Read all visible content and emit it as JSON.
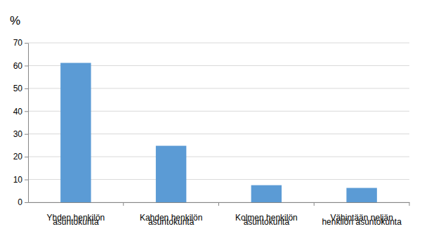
{
  "chart_data": {
    "type": "bar",
    "y_label": "%",
    "categories": [
      "Yhden henkilön\nasuntokunta",
      "Kahden henkilön\nasuntokunta",
      "Kolmen henkilön\nasuntokunta",
      "Vähintään neljän\nhenkilön asuntokunta"
    ],
    "values": [
      61.2,
      24.8,
      7.5,
      6.3
    ],
    "color": "#5b9bd5",
    "ylim": [
      0,
      70
    ],
    "yticks": [
      0,
      10,
      20,
      30,
      40,
      50,
      60,
      70
    ],
    "grid": true
  }
}
